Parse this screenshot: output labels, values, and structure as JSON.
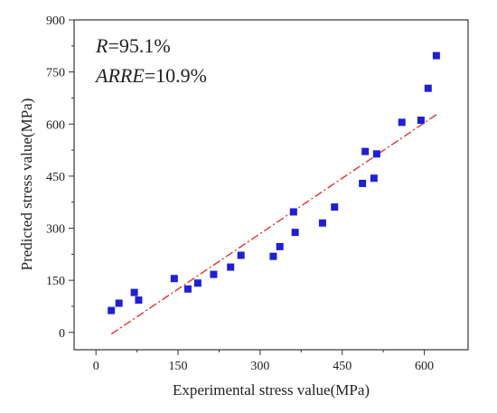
{
  "chart_data": {
    "type": "scatter",
    "xlabel": "Experimental stress value(MPa)",
    "ylabel": "Predicted stress value(MPa)",
    "xlim": [
      -40,
      680
    ],
    "ylim": [
      -50,
      900
    ],
    "xticks": [
      0,
      150,
      300,
      450,
      600
    ],
    "yticks": [
      0,
      150,
      300,
      450,
      600,
      750,
      900
    ],
    "tick_labels_x": [
      "0",
      "150",
      "300",
      "450",
      "600"
    ],
    "tick_labels_y": [
      "0",
      "150",
      "300",
      "450",
      "600",
      "750",
      "900"
    ],
    "annotations": [
      {
        "italic": "R",
        "rest": "=95.1%"
      },
      {
        "italic": "ARRE",
        "rest": "=10.9%"
      }
    ],
    "series": [
      {
        "marker": "square",
        "color": "#1f1fd6",
        "points": [
          [
            28,
            63
          ],
          [
            42,
            84
          ],
          [
            70,
            115
          ],
          [
            78,
            93
          ],
          [
            143,
            155
          ],
          [
            168,
            125
          ],
          [
            186,
            142
          ],
          [
            215,
            167
          ],
          [
            246,
            188
          ],
          [
            265,
            222
          ],
          [
            324,
            219
          ],
          [
            336,
            247
          ],
          [
            361,
            347
          ],
          [
            364,
            288
          ],
          [
            414,
            315
          ],
          [
            436,
            361
          ],
          [
            487,
            429
          ],
          [
            492,
            521
          ],
          [
            508,
            444
          ],
          [
            513,
            514
          ],
          [
            559,
            605
          ],
          [
            594,
            611
          ],
          [
            607,
            703
          ],
          [
            622,
            797
          ]
        ]
      }
    ],
    "fit_line": {
      "style": "dash-dot",
      "color": "#e53030",
      "start": [
        28,
        -5
      ],
      "end": [
        622,
        627
      ]
    },
    "grid": false
  }
}
